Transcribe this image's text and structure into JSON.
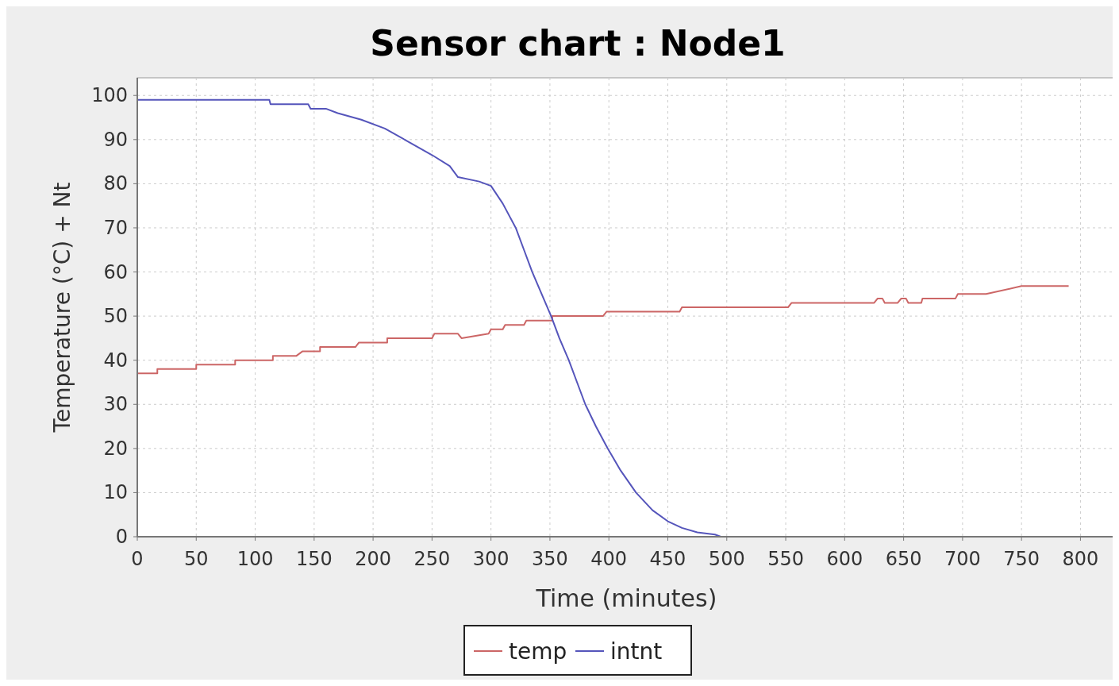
{
  "chart_data": {
    "type": "line",
    "title": "Sensor chart : Node1",
    "xlabel": "Time (minutes)",
    "ylabel": "Temperature (°C) + Nt",
    "xlim": [
      0,
      830
    ],
    "ylim": [
      0,
      104
    ],
    "xticks": [
      0,
      50,
      100,
      150,
      200,
      250,
      300,
      350,
      400,
      450,
      500,
      550,
      600,
      650,
      700,
      750,
      800
    ],
    "yticks": [
      0,
      10,
      20,
      30,
      40,
      50,
      60,
      70,
      80,
      90,
      100
    ],
    "grid": true,
    "legend": "bottom",
    "line_style": "solid",
    "series": [
      {
        "name": "temp",
        "color": "#cc6666",
        "x": [
          0,
          17,
          17,
          50,
          50,
          83,
          83,
          115,
          115,
          135,
          140,
          155,
          155,
          185,
          188,
          212,
          212,
          250,
          252,
          272,
          275,
          298,
          300,
          310,
          312,
          328,
          330,
          352,
          352,
          395,
          398,
          460,
          462,
          552,
          555,
          625,
          628,
          632,
          634,
          645,
          648,
          652,
          654,
          665,
          666,
          694,
          696,
          720,
          750,
          790
        ],
        "values": [
          37,
          37,
          38,
          38,
          39,
          39,
          40,
          40,
          41,
          41,
          42,
          42,
          43,
          43,
          44,
          44,
          45,
          45,
          46,
          46,
          45,
          46,
          47,
          47,
          48,
          48,
          49,
          49,
          50,
          50,
          51,
          51,
          52,
          52,
          53,
          53,
          54,
          54,
          53,
          53,
          54,
          54,
          53,
          53,
          54,
          54,
          55,
          55,
          56.8,
          56.8
        ]
      },
      {
        "name": "intnt",
        "color": "#5555bb",
        "x": [
          0,
          112,
          113,
          145,
          147,
          160,
          170,
          190,
          210,
          230,
          250,
          265,
          272,
          290,
          300,
          310,
          321,
          328,
          335,
          343,
          351,
          358,
          366,
          373,
          380,
          389,
          399,
          410,
          423,
          437,
          450,
          462,
          475,
          490,
          495,
          790
        ],
        "values": [
          99,
          99,
          98,
          98,
          97,
          97,
          96,
          94.5,
          92.5,
          89.5,
          86.5,
          84,
          81.5,
          80.5,
          79.5,
          75.5,
          70,
          65,
          60,
          55,
          50,
          45,
          40,
          35,
          30,
          25,
          20,
          15,
          10,
          6,
          3.5,
          2,
          1,
          0.5,
          0,
          0
        ]
      }
    ]
  }
}
